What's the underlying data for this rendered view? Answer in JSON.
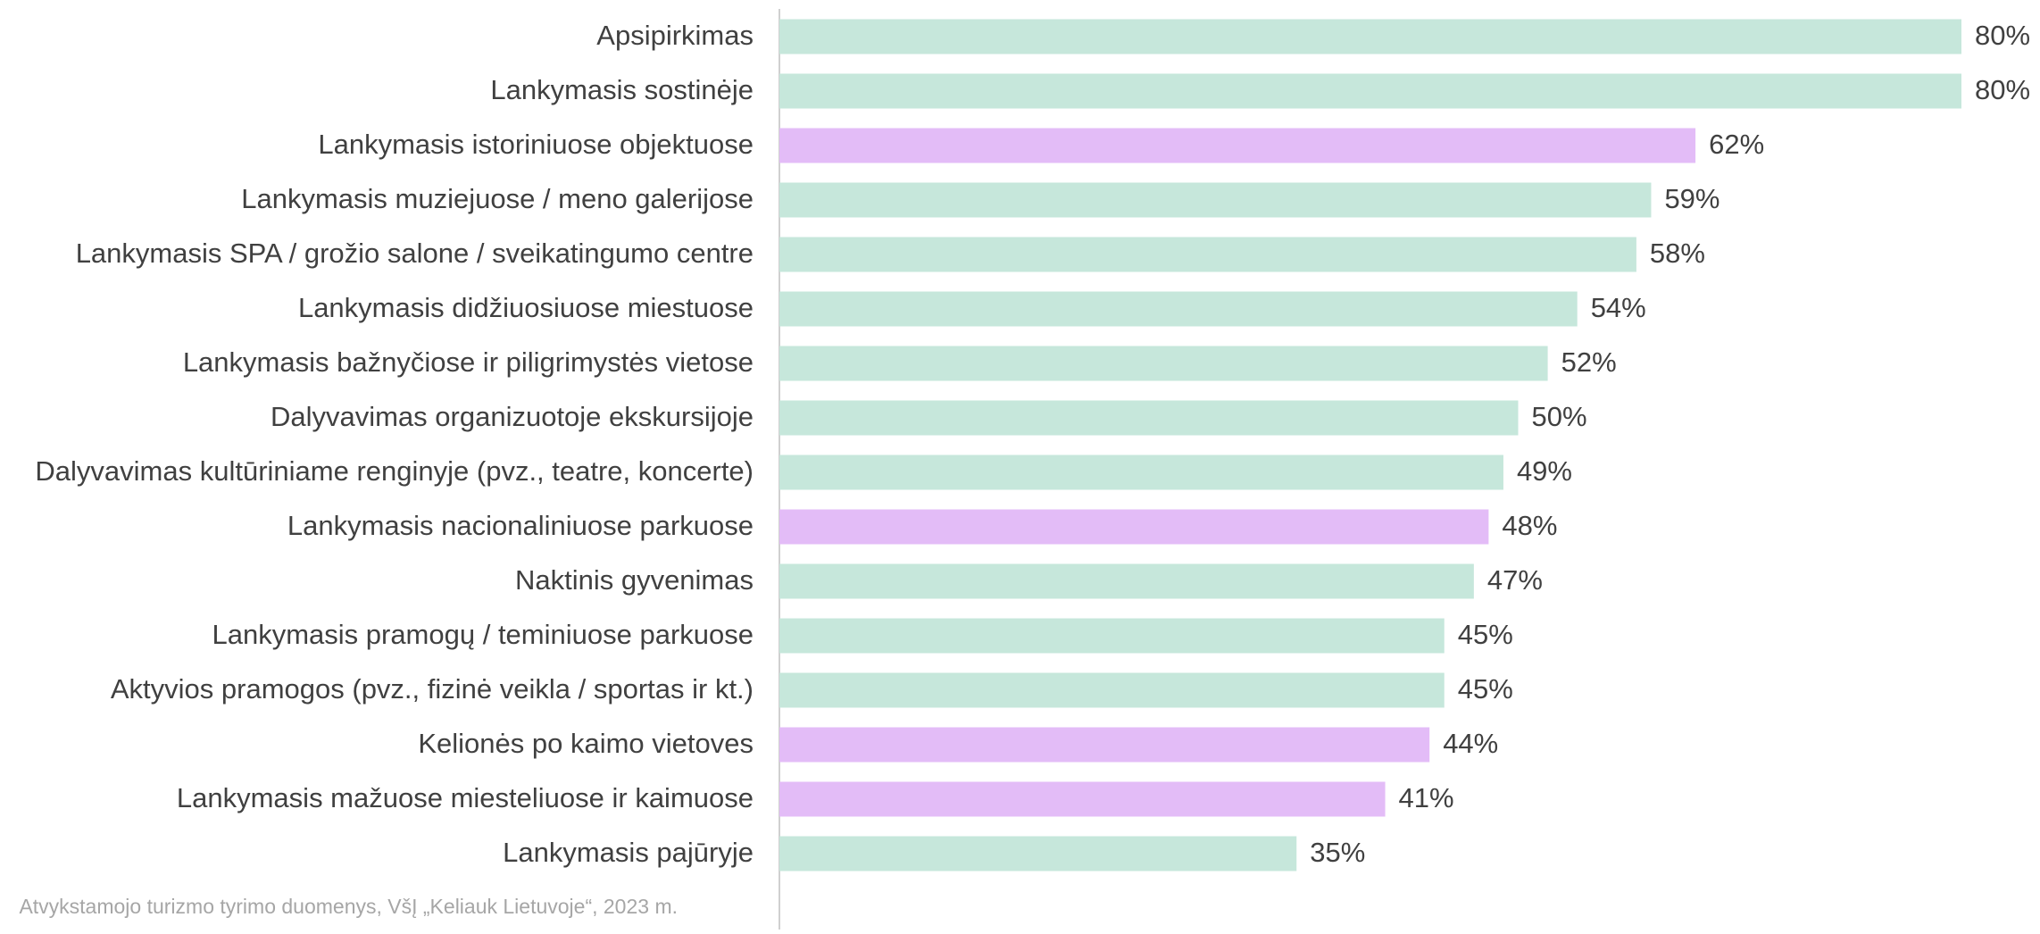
{
  "chart_data": {
    "type": "barh",
    "categories": [
      "Apsipirkimas",
      "Lankymasis sostinėje",
      "Lankymasis istoriniuose objektuose",
      "Lankymasis muziejuose / meno galerijose",
      "Lankymasis SPA / grožio salone / sveikatingumo centre",
      "Lankymasis didžiuosiuose miestuose",
      "Lankymasis bažnyčiose ir piligrimystės vietose",
      "Dalyvavimas organizuotoje ekskursijoje",
      "Dalyvavimas kultūriniame renginyje (pvz., teatre, koncerte)",
      "Lankymasis nacionaliniuose parkuose",
      "Naktinis gyvenimas",
      "Lankymasis pramogų / teminiuose parkuose",
      "Aktyvios pramogos (pvz., fizinė veikla / sportas ir kt.)",
      "Kelionės po kaimo vietoves",
      "Lankymasis mažuose miesteliuose ir kaimuose",
      "Lankymasis pajūryje"
    ],
    "values": [
      80,
      80,
      62,
      59,
      58,
      54,
      52,
      50,
      49,
      48,
      47,
      45,
      45,
      44,
      41,
      35
    ],
    "value_labels": [
      "80%",
      "80%",
      "62%",
      "59%",
      "58%",
      "54%",
      "52%",
      "50%",
      "49%",
      "48%",
      "47%",
      "45%",
      "45%",
      "44%",
      "41%",
      "35%"
    ],
    "colors": [
      "#c6e7db",
      "#c6e7db",
      "#e3bcf7",
      "#c6e7db",
      "#c6e7db",
      "#c6e7db",
      "#c6e7db",
      "#c6e7db",
      "#c6e7db",
      "#e3bcf7",
      "#c6e7db",
      "#c6e7db",
      "#c6e7db",
      "#e3bcf7",
      "#e3bcf7",
      "#c6e7db"
    ],
    "source": "Atvykstamojo turizmo tyrimo duomenys, VšĮ „Keliauk Lietuvoje“, 2023 m."
  }
}
